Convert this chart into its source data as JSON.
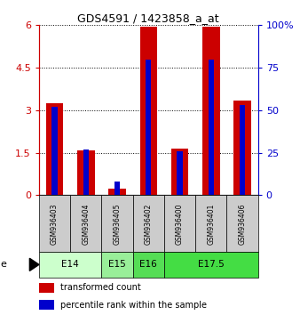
{
  "title": "GDS4591 / 1423858_a_at",
  "samples": [
    "GSM936403",
    "GSM936404",
    "GSM936405",
    "GSM936402",
    "GSM936400",
    "GSM936401",
    "GSM936406"
  ],
  "transformed_count": [
    3.25,
    1.6,
    0.25,
    5.95,
    1.65,
    5.95,
    3.35
  ],
  "percentile_rank_pct": [
    52,
    27,
    8,
    80,
    26,
    80,
    53
  ],
  "age_groups": [
    {
      "label": "E14",
      "span": [
        0,
        2
      ],
      "color": "#ccffcc"
    },
    {
      "label": "E15",
      "span": [
        2,
        3
      ],
      "color": "#99ee99"
    },
    {
      "label": "E16",
      "span": [
        3,
        4
      ],
      "color": "#55dd55"
    },
    {
      "label": "E17.5",
      "span": [
        4,
        7
      ],
      "color": "#44dd44"
    }
  ],
  "ylim_left": [
    0,
    6
  ],
  "yticks_left": [
    0,
    1.5,
    3.0,
    4.5,
    6
  ],
  "ylim_right": [
    0,
    100
  ],
  "yticks_right": [
    0,
    25,
    50,
    75,
    100
  ],
  "bar_color_red": "#cc0000",
  "bar_color_blue": "#0000cc",
  "sample_box_color": "#cccccc",
  "bar_width": 0.55,
  "blue_bar_width": 0.18
}
